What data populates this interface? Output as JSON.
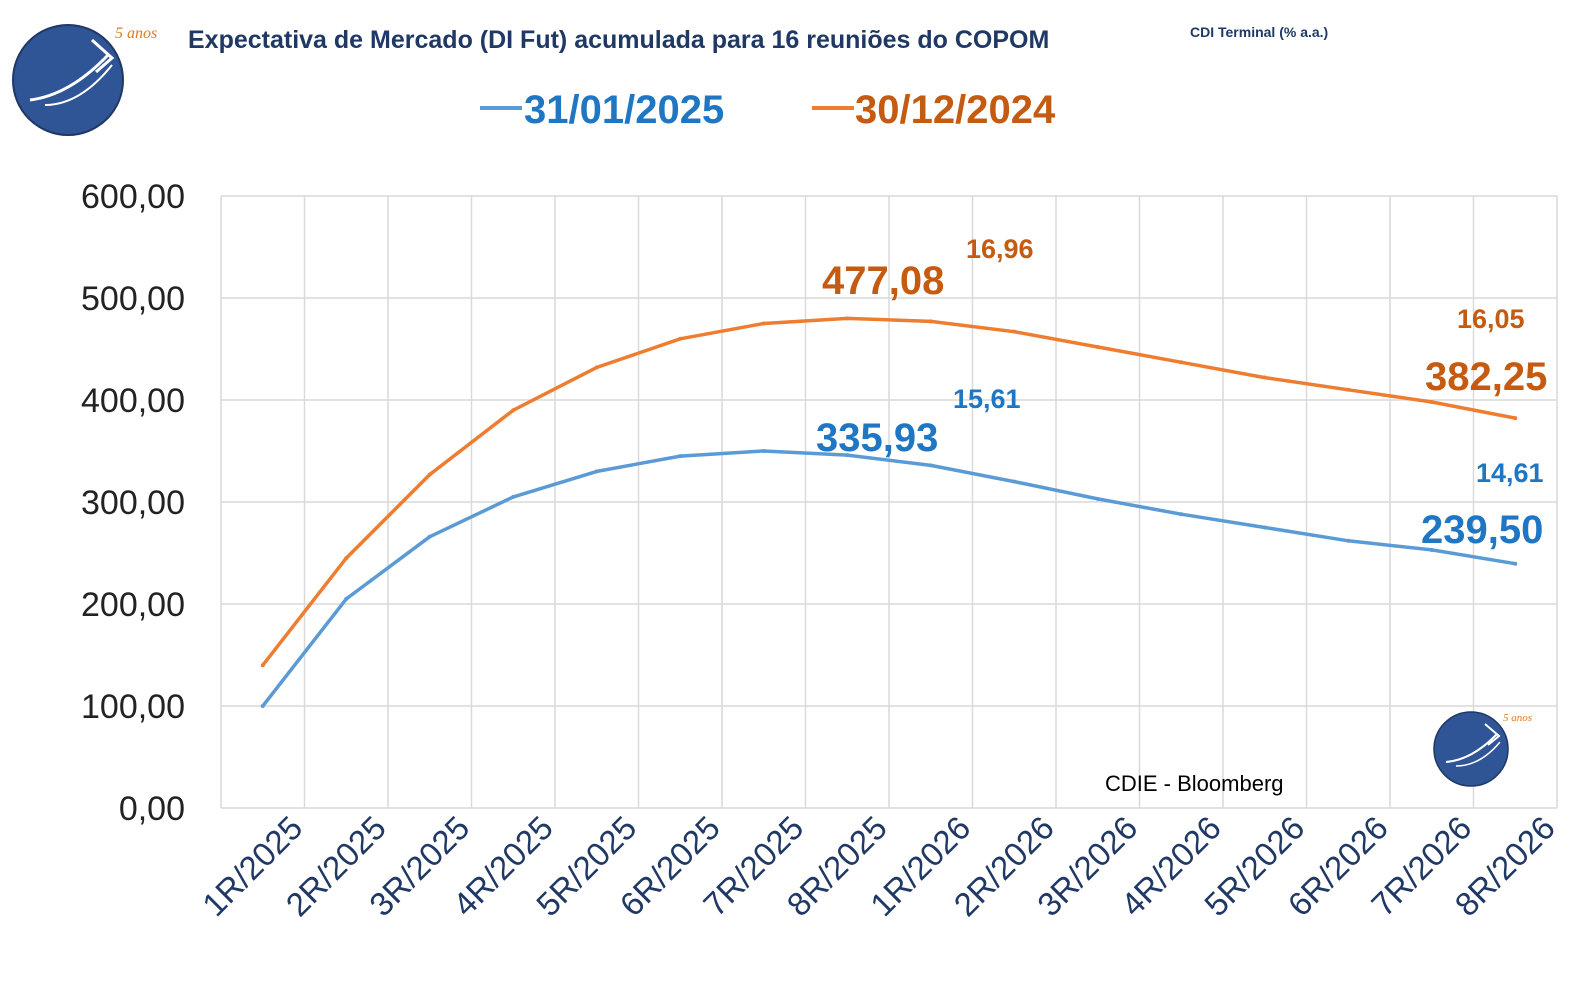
{
  "header": {
    "title": "Expectativa de Mercado (DI Fut) acumulada para 16 reuniões do COPOM",
    "subtitle": "CDI Terminal (% a.a.)",
    "logo_text": "5 anos"
  },
  "source_note": "CDIE - Bloomberg",
  "colors": {
    "title": "#1f3864",
    "blue": "#5b9bd5",
    "blue_label": "#1f77c4",
    "orange": "#ed7d31",
    "orange_label": "#c55a11",
    "grid": "#d9d9d9",
    "logo_bg": "#2f5597"
  },
  "chart_data": {
    "type": "line",
    "categories": [
      "1R/2025",
      "2R/2025",
      "3R/2025",
      "4R/2025",
      "5R/2025",
      "6R/2025",
      "7R/2025",
      "8R/2025",
      "1R/2026",
      "2R/2026",
      "3R/2026",
      "4R/2026",
      "5R/2026",
      "6R/2026",
      "7R/2026",
      "8R/2026"
    ],
    "series": [
      {
        "name": "31/01/2025",
        "color": "#5b9bd5",
        "values": [
          100.0,
          205.0,
          266.0,
          305.0,
          330.0,
          345.0,
          350.0,
          346.0,
          335.93,
          320.0,
          303.0,
          288.0,
          275.0,
          262.0,
          253.0,
          239.5
        ]
      },
      {
        "name": "30/12/2024",
        "color": "#ed7d31",
        "values": [
          140.0,
          245.0,
          327.0,
          390.0,
          432.0,
          460.0,
          475.0,
          480.0,
          477.08,
          467.0,
          452.0,
          437.0,
          422.0,
          410.0,
          398.0,
          382.25
        ]
      }
    ],
    "annotations": [
      {
        "series": "30/12/2024",
        "value": "477,08",
        "terminal": "16,96"
      },
      {
        "series": "30/12/2024",
        "value": "382,25",
        "terminal": "16,05"
      },
      {
        "series": "31/01/2025",
        "value": "335,93",
        "terminal": "15,61"
      },
      {
        "series": "31/01/2025",
        "value": "239,50",
        "terminal": "14,61"
      }
    ],
    "yticks": [
      "0,00",
      "100,00",
      "200,00",
      "300,00",
      "400,00",
      "500,00",
      "600,00"
    ],
    "ylim": [
      0,
      600
    ],
    "grid": true,
    "legend_position": "top"
  }
}
